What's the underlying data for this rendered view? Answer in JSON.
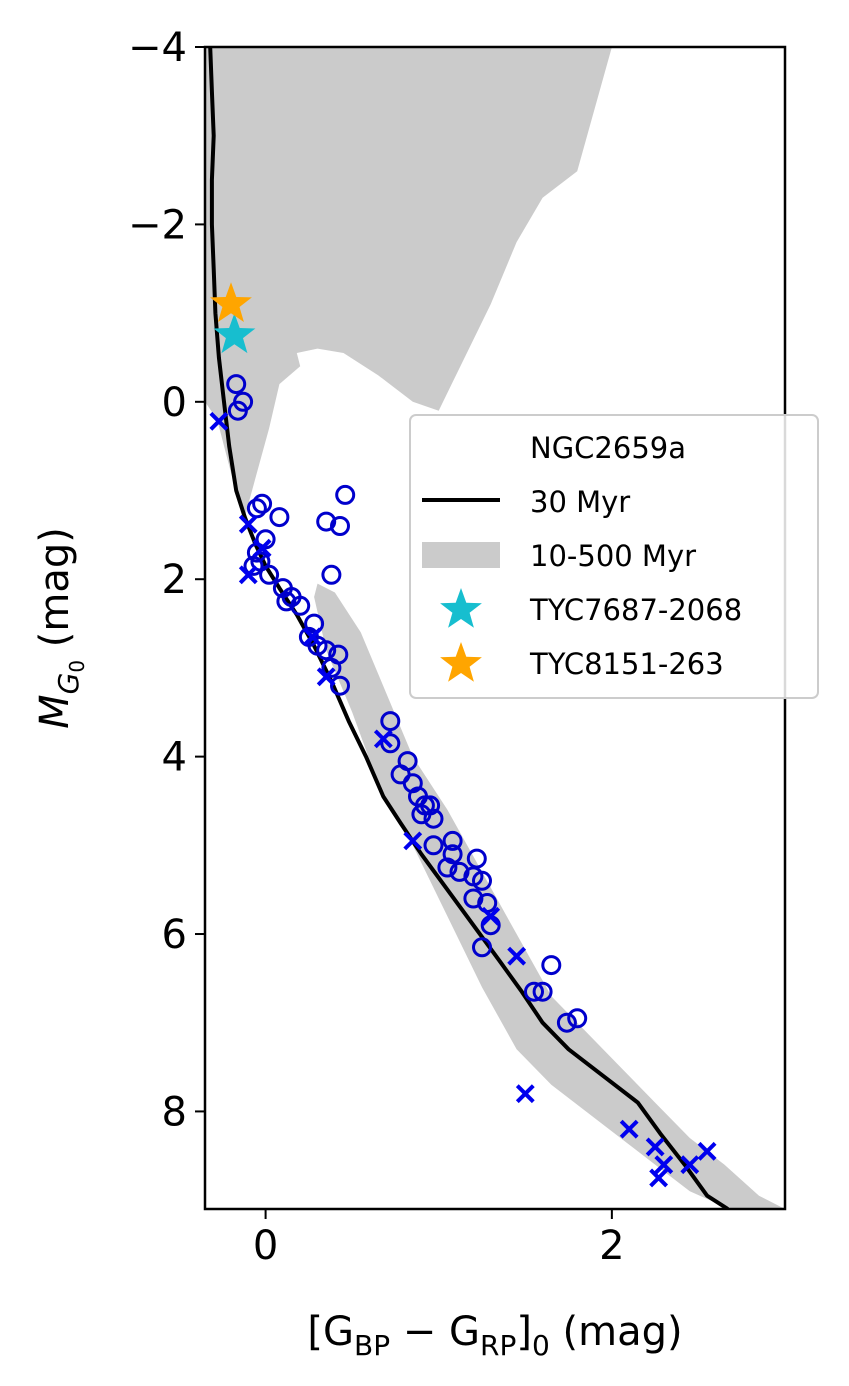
{
  "chart_data": {
    "type": "scatter",
    "title": "",
    "xlabel_parts": {
      "open": "[G",
      "sub1": "BP",
      "minus": " − G",
      "sub2": "RP",
      "close": "]",
      "sub3": "0",
      "unit": " (mag)"
    },
    "ylabel_parts": {
      "main": "M",
      "sub": "G",
      "subsub": "0",
      "unit": " (mag)"
    },
    "xlim": [
      -0.35,
      3.0
    ],
    "ylim": [
      9.1,
      -4.0
    ],
    "y_inverted": true,
    "x_ticks": [
      0,
      2
    ],
    "x_tick_labels": [
      "0",
      "2"
    ],
    "y_ticks": [
      -4,
      -2,
      0,
      2,
      4,
      6,
      8
    ],
    "y_tick_labels": [
      "−4",
      "−2",
      "0",
      "2",
      "4",
      "6",
      "8"
    ],
    "grid": false,
    "legend": {
      "placement": "center-right",
      "title": "NGC2659a",
      "entries": [
        "30 Myr",
        "10-500 Myr",
        "TYC7687-2068",
        "TYC8151-263"
      ]
    },
    "colors": {
      "isochrone": "#000000",
      "band": "#cbcbcb",
      "members_open": "#0000cc",
      "members_x": "#0000ee",
      "star_cyan": "#17becf",
      "star_orange": "#ffa500"
    },
    "series": [
      {
        "name": "30 Myr",
        "kind": "line",
        "x": [
          -0.32,
          -0.31,
          -0.3,
          -0.31,
          -0.31,
          -0.3,
          -0.29,
          -0.27,
          -0.24,
          -0.21,
          -0.17,
          -0.12,
          -0.06,
          0.0,
          0.08,
          0.18,
          0.28,
          0.38,
          0.48,
          0.58,
          0.68,
          0.78,
          0.9,
          1.05,
          1.2,
          1.35,
          1.48,
          1.6,
          1.75,
          1.95,
          2.15,
          2.28,
          2.42,
          2.55,
          2.67
        ],
        "y": [
          -4.0,
          -3.5,
          -3.0,
          -2.5,
          -2.0,
          -1.5,
          -1.0,
          -0.5,
          0.0,
          0.5,
          1.0,
          1.3,
          1.6,
          1.85,
          2.1,
          2.4,
          2.75,
          3.15,
          3.6,
          4.0,
          4.45,
          4.75,
          5.1,
          5.5,
          5.9,
          6.3,
          6.65,
          7.0,
          7.3,
          7.6,
          7.9,
          8.25,
          8.6,
          8.95,
          9.1
        ]
      },
      {
        "name": "10-500 Myr",
        "kind": "band",
        "upper_region": {
          "x": [
            -0.35,
            2.0,
            1.8,
            1.6,
            1.45,
            1.3,
            1.1,
            1.0,
            0.85,
            0.65,
            0.45,
            0.3,
            0.18,
            0.2,
            0.08,
            0.02,
            -0.05,
            -0.12,
            -0.2,
            -0.28,
            -0.35
          ],
          "y": [
            -4.0,
            -4.0,
            -2.6,
            -2.3,
            -1.8,
            -1.1,
            -0.3,
            0.1,
            0.0,
            -0.3,
            -0.55,
            -0.6,
            -0.55,
            -0.4,
            -0.2,
            0.3,
            0.8,
            1.3,
            0.8,
            0.2,
            0.0
          ]
        },
        "lower_region": {
          "x": [
            0.3,
            0.4,
            0.55,
            0.7,
            0.85,
            1.05,
            1.25,
            1.45,
            1.65,
            1.85,
            2.05,
            2.25,
            2.45,
            2.65,
            2.85,
            3.0,
            2.68,
            2.45,
            2.25,
            2.05,
            1.85,
            1.65,
            1.45,
            1.25,
            1.05,
            0.85,
            0.65,
            0.5,
            0.35,
            0.28
          ],
          "y": [
            2.05,
            2.15,
            2.6,
            3.3,
            4.0,
            4.6,
            5.3,
            6.0,
            6.7,
            7.1,
            7.5,
            7.9,
            8.3,
            8.6,
            8.95,
            9.1,
            9.1,
            8.9,
            8.6,
            8.3,
            8.0,
            7.7,
            7.3,
            6.6,
            5.8,
            5.0,
            4.3,
            3.5,
            2.8,
            2.2
          ]
        }
      },
      {
        "name": "members-open",
        "kind": "scatter",
        "marker": "circle-open",
        "points": [
          [
            -0.17,
            -0.2
          ],
          [
            -0.13,
            0.0
          ],
          [
            -0.16,
            0.1
          ],
          [
            -0.02,
            1.15
          ],
          [
            -0.05,
            1.2
          ],
          [
            0.08,
            1.3
          ],
          [
            0.0,
            1.55
          ],
          [
            -0.05,
            1.7
          ],
          [
            -0.03,
            1.8
          ],
          [
            -0.07,
            1.85
          ],
          [
            0.02,
            1.95
          ],
          [
            0.1,
            2.1
          ],
          [
            0.15,
            2.2
          ],
          [
            0.12,
            2.25
          ],
          [
            0.2,
            2.3
          ],
          [
            0.28,
            2.5
          ],
          [
            0.25,
            2.65
          ],
          [
            0.3,
            2.75
          ],
          [
            0.35,
            2.8
          ],
          [
            0.42,
            2.85
          ],
          [
            0.38,
            3.0
          ],
          [
            0.43,
            3.2
          ],
          [
            0.35,
            1.35
          ],
          [
            0.43,
            1.4
          ],
          [
            0.46,
            1.05
          ],
          [
            0.38,
            1.95
          ],
          [
            0.72,
            3.6
          ],
          [
            0.72,
            3.85
          ],
          [
            0.82,
            4.05
          ],
          [
            0.78,
            4.2
          ],
          [
            0.85,
            4.3
          ],
          [
            0.88,
            4.45
          ],
          [
            0.92,
            4.55
          ],
          [
            0.95,
            4.55
          ],
          [
            0.9,
            4.65
          ],
          [
            0.97,
            4.7
          ],
          [
            0.97,
            5.0
          ],
          [
            1.08,
            4.95
          ],
          [
            1.08,
            5.1
          ],
          [
            1.05,
            5.25
          ],
          [
            1.12,
            5.3
          ],
          [
            1.22,
            5.15
          ],
          [
            1.2,
            5.35
          ],
          [
            1.25,
            5.4
          ],
          [
            1.2,
            5.6
          ],
          [
            1.28,
            5.65
          ],
          [
            1.3,
            5.9
          ],
          [
            1.25,
            6.15
          ],
          [
            1.65,
            6.35
          ],
          [
            1.6,
            6.65
          ],
          [
            1.55,
            6.65
          ],
          [
            1.8,
            6.95
          ],
          [
            1.74,
            7.0
          ]
        ]
      },
      {
        "name": "members-x",
        "kind": "scatter",
        "marker": "x",
        "points": [
          [
            -0.27,
            0.22
          ],
          [
            -0.1,
            1.38
          ],
          [
            -0.02,
            1.65
          ],
          [
            -0.1,
            1.95
          ],
          [
            0.27,
            2.65
          ],
          [
            0.35,
            3.1
          ],
          [
            0.68,
            3.8
          ],
          [
            0.85,
            4.95
          ],
          [
            1.3,
            5.8
          ],
          [
            1.45,
            6.25
          ],
          [
            1.5,
            7.8
          ],
          [
            2.1,
            8.2
          ],
          [
            2.25,
            8.4
          ],
          [
            2.3,
            8.6
          ],
          [
            2.27,
            8.75
          ],
          [
            2.45,
            8.6
          ],
          [
            2.55,
            8.45
          ]
        ]
      },
      {
        "name": "TYC7687-2068",
        "kind": "scatter",
        "marker": "star",
        "points": [
          [
            -0.18,
            -0.75
          ]
        ]
      },
      {
        "name": "TYC8151-263",
        "kind": "scatter",
        "marker": "star",
        "points": [
          [
            -0.2,
            -1.1
          ]
        ]
      }
    ]
  }
}
